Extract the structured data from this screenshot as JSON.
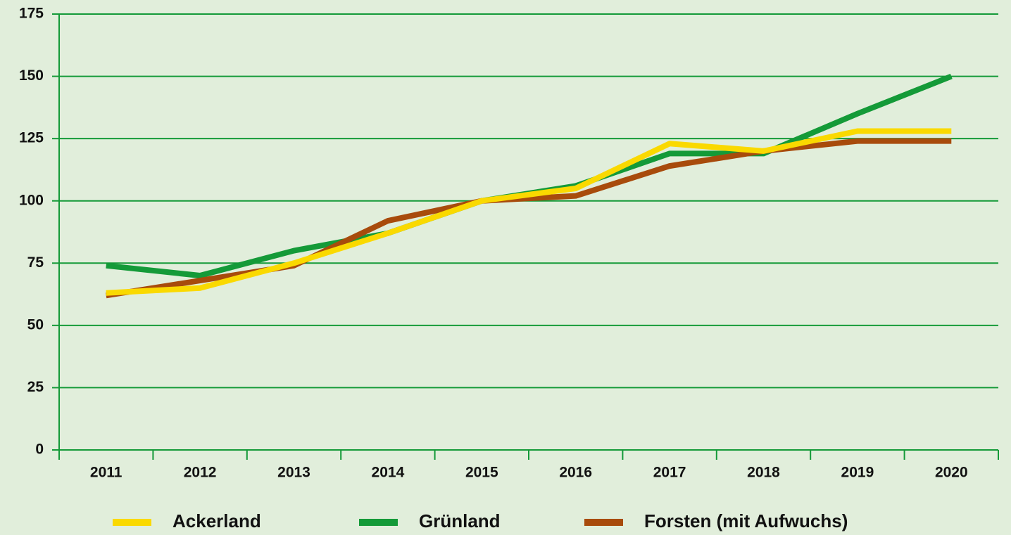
{
  "chart_data": {
    "type": "line",
    "categories": [
      "2011",
      "2012",
      "2013",
      "2014",
      "2015",
      "2016",
      "2017",
      "2018",
      "2019",
      "2020"
    ],
    "series": [
      {
        "name": "Grünland",
        "color": "#149a38",
        "values": [
          74,
          70,
          80,
          87,
          100,
          106,
          119,
          119,
          135,
          150
        ]
      },
      {
        "name": "Forsten (mit Aufwuchs)",
        "color": "#a84b0c",
        "values": [
          62,
          68,
          74,
          92,
          100,
          102,
          114,
          120,
          124,
          124
        ]
      },
      {
        "name": "Ackerland",
        "color": "#fad900",
        "values": [
          63,
          65,
          75,
          87,
          100,
          105,
          123,
          120,
          128,
          128
        ]
      }
    ],
    "legend_order": [
      "Ackerland",
      "Grünland",
      "Forsten (mit Aufwuchs)"
    ],
    "ylim": [
      0,
      175
    ],
    "yticks": [
      0,
      25,
      50,
      75,
      100,
      125,
      150,
      175
    ],
    "grid": true
  }
}
